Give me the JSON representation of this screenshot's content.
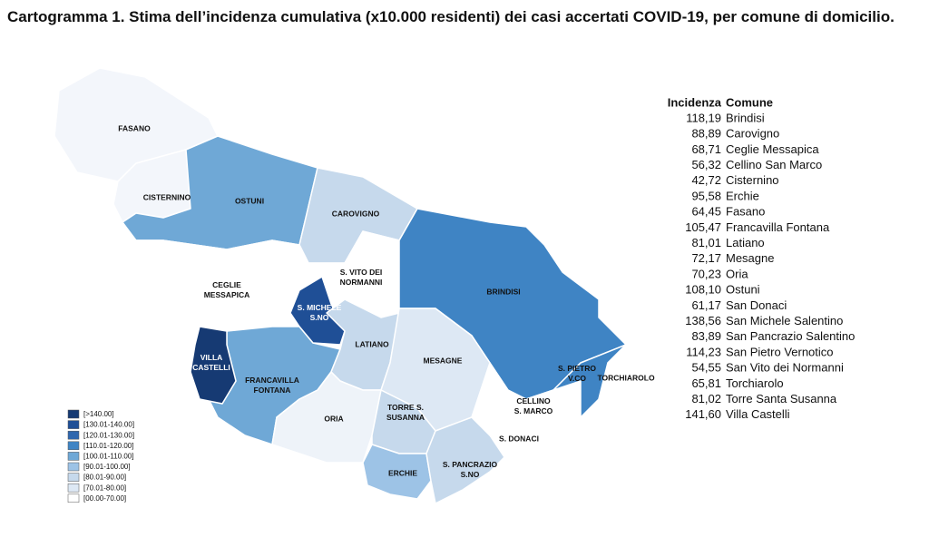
{
  "title": "Cartogramma 1. Stima dell’incidenza cumulativa (x10.000 residenti) dei casi accertati COVID-19, per comune di domicilio.",
  "map_labels": [
    [
      "FASANO"
    ],
    [
      "CISTERNINO"
    ],
    [
      "OSTUNI"
    ],
    [
      "CAROVIGNO"
    ],
    [
      "CEGLIE",
      "MESSAPICA"
    ],
    [
      "S. VITO DEI",
      "NORMANNI"
    ],
    [
      "BRINDISI"
    ],
    [
      "S. MICHELE",
      "S.NO"
    ],
    [
      "VILLA",
      "CASTELLI"
    ],
    [
      "FRANCAVILLA",
      "FONTANA"
    ],
    [
      "LATIANO"
    ],
    [
      "MESAGNE"
    ],
    [
      "ORIA"
    ],
    [
      "TORRE S.",
      "SUSANNA"
    ],
    [
      "ERCHIE"
    ],
    [
      "S. PANCRAZIO",
      "S.NO"
    ],
    [
      "S. DONACI"
    ],
    [
      "CELLINO",
      "S. MARCO"
    ],
    [
      "S. PIETRO",
      "V.CO"
    ],
    [
      "TORCHIAROLO"
    ]
  ],
  "legend": [
    "[>140.00]",
    "[130.01-140.00]",
    "[120.01-130.00]",
    "[110.01-120.00]",
    "[100.01-110.00]",
    "[90.01-100.00]",
    "[80.01-90.00]",
    "[70.01-80.00]",
    "[00.00-70.00]"
  ],
  "table": {
    "header": [
      "Incidenza",
      "Comune"
    ],
    "rows": [
      [
        "118,19",
        "Brindisi"
      ],
      [
        "88,89",
        "Carovigno"
      ],
      [
        "68,71",
        "Ceglie Messapica"
      ],
      [
        "56,32",
        "Cellino San Marco"
      ],
      [
        "42,72",
        "Cisternino"
      ],
      [
        "95,58",
        "Erchie"
      ],
      [
        "64,45",
        "Fasano"
      ],
      [
        "105,47",
        "Francavilla Fontana"
      ],
      [
        "81,01",
        "Latiano"
      ],
      [
        "72,17",
        "Mesagne"
      ],
      [
        "70,23",
        "Oria"
      ],
      [
        "108,10",
        "Ostuni"
      ],
      [
        "61,17",
        "San Donaci"
      ],
      [
        "138,56",
        "San Michele Salentino"
      ],
      [
        "83,89",
        "San Pancrazio Salentino"
      ],
      [
        "114,23",
        "San Pietro Vernotico"
      ],
      [
        "54,55",
        "San Vito dei Normanni"
      ],
      [
        "65,81",
        "Torchiarolo"
      ],
      [
        "81,02",
        "Torre Santa Susanna"
      ],
      [
        "141,60",
        "Villa Castelli"
      ]
    ]
  }
}
